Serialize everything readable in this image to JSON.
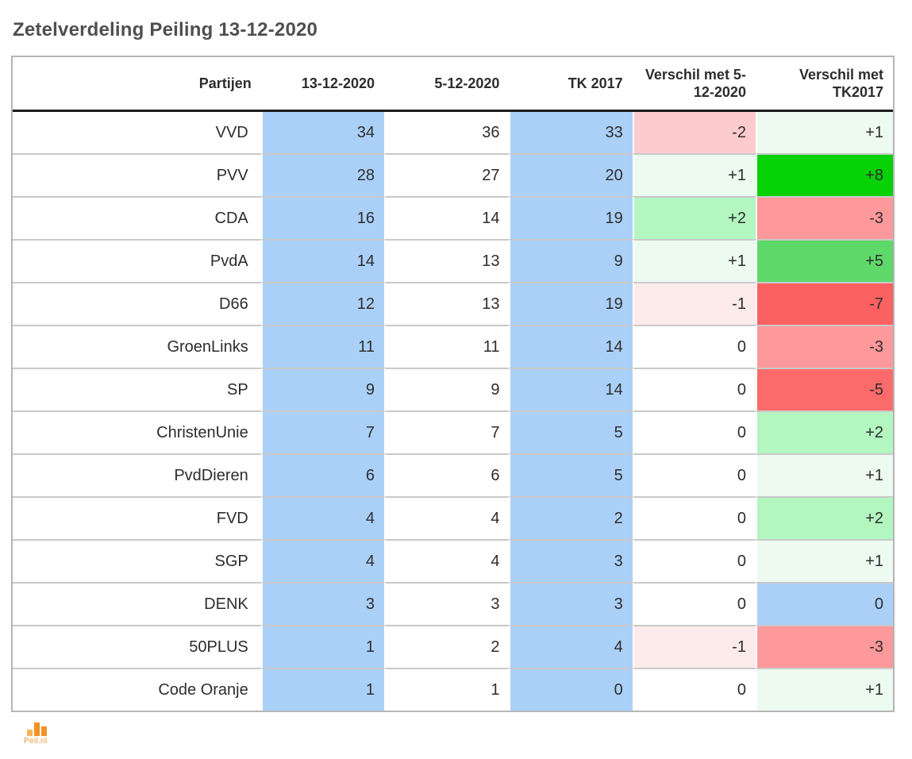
{
  "title": "Zetelverdeling Peiling 13-12-2020",
  "colors": {
    "cell_blue": "#abd0f8",
    "green_p1": "#ecfaf0",
    "green_p2": "#b3f6c0",
    "green_p5": "#5ed969",
    "green_p8": "#06d206",
    "red_m1": "#fdeaeb",
    "red_m2": "#fccbce",
    "red_m3": "#fd989b",
    "red_m5": "#fc6b6b",
    "red_m7": "#fb6161",
    "row_divider": "#c9c9c9",
    "header_divider": "#1c1c1c",
    "outer_border": "#b5b5b5",
    "logo_orange": "#ef9226"
  },
  "table": {
    "columns": [
      "Partijen",
      "13-12-2020",
      "5-12-2020",
      "TK 2017",
      "Verschil met 5-12-2020",
      "Verschil met TK2017"
    ],
    "rows": [
      {
        "cells": [
          {
            "text": "VVD"
          },
          {
            "text": "34",
            "bg": "#abd0f8"
          },
          {
            "text": "36"
          },
          {
            "text": "33",
            "bg": "#abd0f8"
          },
          {
            "text": "-2",
            "bg": "#fccbce"
          },
          {
            "text": "+1",
            "bg": "#ecfaf0"
          }
        ]
      },
      {
        "cells": [
          {
            "text": "PVV"
          },
          {
            "text": "28",
            "bg": "#abd0f8"
          },
          {
            "text": "27"
          },
          {
            "text": "20",
            "bg": "#abd0f8"
          },
          {
            "text": "+1",
            "bg": "#ecfaf0"
          },
          {
            "text": "+8",
            "bg": "#06d206"
          }
        ]
      },
      {
        "cells": [
          {
            "text": "CDA"
          },
          {
            "text": "16",
            "bg": "#abd0f8"
          },
          {
            "text": "14"
          },
          {
            "text": "19",
            "bg": "#abd0f8"
          },
          {
            "text": "+2",
            "bg": "#b3f6c0"
          },
          {
            "text": "-3",
            "bg": "#fd989b"
          }
        ]
      },
      {
        "cells": [
          {
            "text": "PvdA"
          },
          {
            "text": "14",
            "bg": "#abd0f8"
          },
          {
            "text": "13"
          },
          {
            "text": "9",
            "bg": "#abd0f8"
          },
          {
            "text": "+1",
            "bg": "#ecfaf0"
          },
          {
            "text": "+5",
            "bg": "#5ed969"
          }
        ]
      },
      {
        "cells": [
          {
            "text": "D66"
          },
          {
            "text": "12",
            "bg": "#abd0f8"
          },
          {
            "text": "13"
          },
          {
            "text": "19",
            "bg": "#abd0f8"
          },
          {
            "text": "-1",
            "bg": "#fdeaeb"
          },
          {
            "text": "-7",
            "bg": "#fb6161"
          }
        ]
      },
      {
        "cells": [
          {
            "text": "GroenLinks"
          },
          {
            "text": "11",
            "bg": "#abd0f8"
          },
          {
            "text": "11"
          },
          {
            "text": "14",
            "bg": "#abd0f8"
          },
          {
            "text": "0"
          },
          {
            "text": "-3",
            "bg": "#fd989b"
          }
        ]
      },
      {
        "cells": [
          {
            "text": "SP"
          },
          {
            "text": "9",
            "bg": "#abd0f8"
          },
          {
            "text": "9"
          },
          {
            "text": "14",
            "bg": "#abd0f8"
          },
          {
            "text": "0"
          },
          {
            "text": "-5",
            "bg": "#fc6b6b"
          }
        ]
      },
      {
        "cells": [
          {
            "text": "ChristenUnie"
          },
          {
            "text": "7",
            "bg": "#abd0f8"
          },
          {
            "text": "7"
          },
          {
            "text": "5",
            "bg": "#abd0f8"
          },
          {
            "text": "0"
          },
          {
            "text": "+2",
            "bg": "#b3f6c0"
          }
        ]
      },
      {
        "cells": [
          {
            "text": "PvdDieren"
          },
          {
            "text": "6",
            "bg": "#abd0f8"
          },
          {
            "text": "6"
          },
          {
            "text": "5",
            "bg": "#abd0f8"
          },
          {
            "text": "0"
          },
          {
            "text": "+1",
            "bg": "#ecfaf0"
          }
        ]
      },
      {
        "cells": [
          {
            "text": "FVD"
          },
          {
            "text": "4",
            "bg": "#abd0f8"
          },
          {
            "text": "4"
          },
          {
            "text": "2",
            "bg": "#abd0f8"
          },
          {
            "text": "0"
          },
          {
            "text": "+2",
            "bg": "#b3f6c0"
          }
        ]
      },
      {
        "cells": [
          {
            "text": "SGP"
          },
          {
            "text": "4",
            "bg": "#abd0f8"
          },
          {
            "text": "4"
          },
          {
            "text": "3",
            "bg": "#abd0f8"
          },
          {
            "text": "0"
          },
          {
            "text": "+1",
            "bg": "#ecfaf0"
          }
        ]
      },
      {
        "cells": [
          {
            "text": "DENK"
          },
          {
            "text": "3",
            "bg": "#abd0f8"
          },
          {
            "text": "3"
          },
          {
            "text": "3",
            "bg": "#abd0f8"
          },
          {
            "text": "0"
          },
          {
            "text": "0",
            "bg": "#abd0f8"
          }
        ]
      },
      {
        "cells": [
          {
            "text": "50PLUS"
          },
          {
            "text": "1",
            "bg": "#abd0f8"
          },
          {
            "text": "2"
          },
          {
            "text": "4",
            "bg": "#abd0f8"
          },
          {
            "text": "-1",
            "bg": "#fdeaeb"
          },
          {
            "text": "-3",
            "bg": "#fd989b"
          }
        ]
      },
      {
        "cells": [
          {
            "text": "Code Oranje"
          },
          {
            "text": "1",
            "bg": "#abd0f8"
          },
          {
            "text": "1"
          },
          {
            "text": "0",
            "bg": "#abd0f8"
          },
          {
            "text": "0"
          },
          {
            "text": "+1",
            "bg": "#ecfaf0"
          }
        ]
      }
    ]
  },
  "chart_data": {
    "type": "table",
    "title": "Zetelverdeling Peiling 13-12-2020",
    "categories": [
      "VVD",
      "PVV",
      "CDA",
      "PvdA",
      "D66",
      "GroenLinks",
      "SP",
      "ChristenUnie",
      "PvdDieren",
      "FVD",
      "SGP",
      "DENK",
      "50PLUS",
      "Code Oranje"
    ],
    "series": [
      {
        "name": "13-12-2020",
        "values": [
          34,
          28,
          16,
          14,
          12,
          11,
          9,
          7,
          6,
          4,
          4,
          3,
          1,
          1
        ]
      },
      {
        "name": "5-12-2020",
        "values": [
          36,
          27,
          14,
          13,
          13,
          11,
          9,
          7,
          6,
          4,
          4,
          3,
          2,
          1
        ]
      },
      {
        "name": "TK 2017",
        "values": [
          33,
          20,
          19,
          9,
          19,
          14,
          14,
          5,
          5,
          2,
          3,
          3,
          4,
          0
        ]
      },
      {
        "name": "Verschil met 5-12-2020",
        "values": [
          -2,
          1,
          2,
          1,
          -1,
          0,
          0,
          0,
          0,
          0,
          0,
          0,
          -1,
          0
        ]
      },
      {
        "name": "Verschil met TK2017",
        "values": [
          1,
          8,
          -3,
          5,
          -7,
          -3,
          -5,
          2,
          1,
          2,
          1,
          0,
          -3,
          1
        ]
      }
    ]
  },
  "footer": {
    "logo_text": "Peil.nl"
  }
}
